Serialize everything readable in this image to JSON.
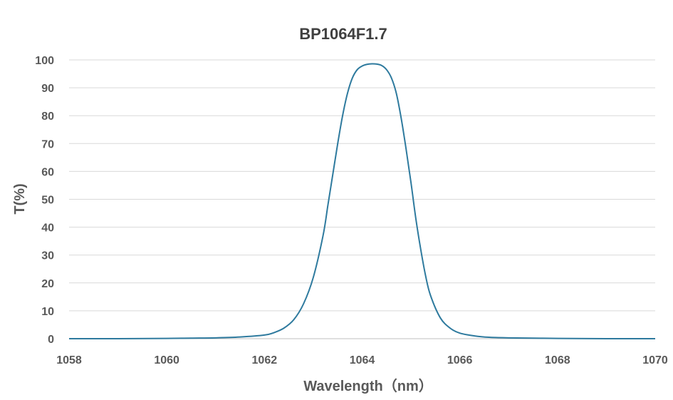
{
  "chart_data": {
    "type": "line",
    "title": "BP1064F1.7",
    "xlabel": "Wavelength（nm）",
    "ylabel": "T(%)",
    "xlim": [
      1058,
      1070
    ],
    "ylim": [
      0,
      100
    ],
    "x_ticks": [
      "1058",
      "1060",
      "1062",
      "1064",
      "1066",
      "1068",
      "1070"
    ],
    "x_tick_values": [
      1058,
      1060,
      1062,
      1064,
      1066,
      1068,
      1070
    ],
    "y_ticks": [
      "0",
      "10",
      "20",
      "30",
      "40",
      "50",
      "60",
      "70",
      "80",
      "90",
      "100"
    ],
    "y_tick_values": [
      0,
      10,
      20,
      30,
      40,
      50,
      60,
      70,
      80,
      90,
      100
    ],
    "grid": true,
    "legend": "none",
    "colors": {
      "series": "#2E7A9E",
      "grid": "#D9D9D9",
      "text": "#595959",
      "title": "#404040"
    },
    "series": [
      {
        "x": [
          1058,
          1059,
          1060,
          1060.5,
          1061,
          1061.5,
          1062,
          1062.2,
          1062.4,
          1062.6,
          1062.8,
          1063.0,
          1063.2,
          1063.3,
          1063.4,
          1063.5,
          1063.6,
          1063.7,
          1063.8,
          1063.9,
          1064.0,
          1064.1,
          1064.2,
          1064.3,
          1064.4,
          1064.5,
          1064.6,
          1064.7,
          1064.8,
          1064.9,
          1065.0,
          1065.1,
          1065.2,
          1065.3,
          1065.4,
          1065.6,
          1065.8,
          1066.0,
          1066.3,
          1066.6,
          1067.0,
          1067.5,
          1068,
          1069,
          1070
        ],
        "values": [
          0,
          0,
          0.1,
          0.2,
          0.3,
          0.6,
          1.3,
          2.2,
          3.8,
          6.8,
          12.5,
          22,
          37,
          48,
          59,
          70,
          80,
          88,
          93.5,
          96.5,
          97.8,
          98.4,
          98.6,
          98.5,
          98,
          96.5,
          93.5,
          88,
          79,
          68,
          56,
          43,
          32,
          22.5,
          15.5,
          7.5,
          3.8,
          2,
          1,
          0.5,
          0.3,
          0.2,
          0.1,
          0,
          0
        ]
      }
    ]
  }
}
